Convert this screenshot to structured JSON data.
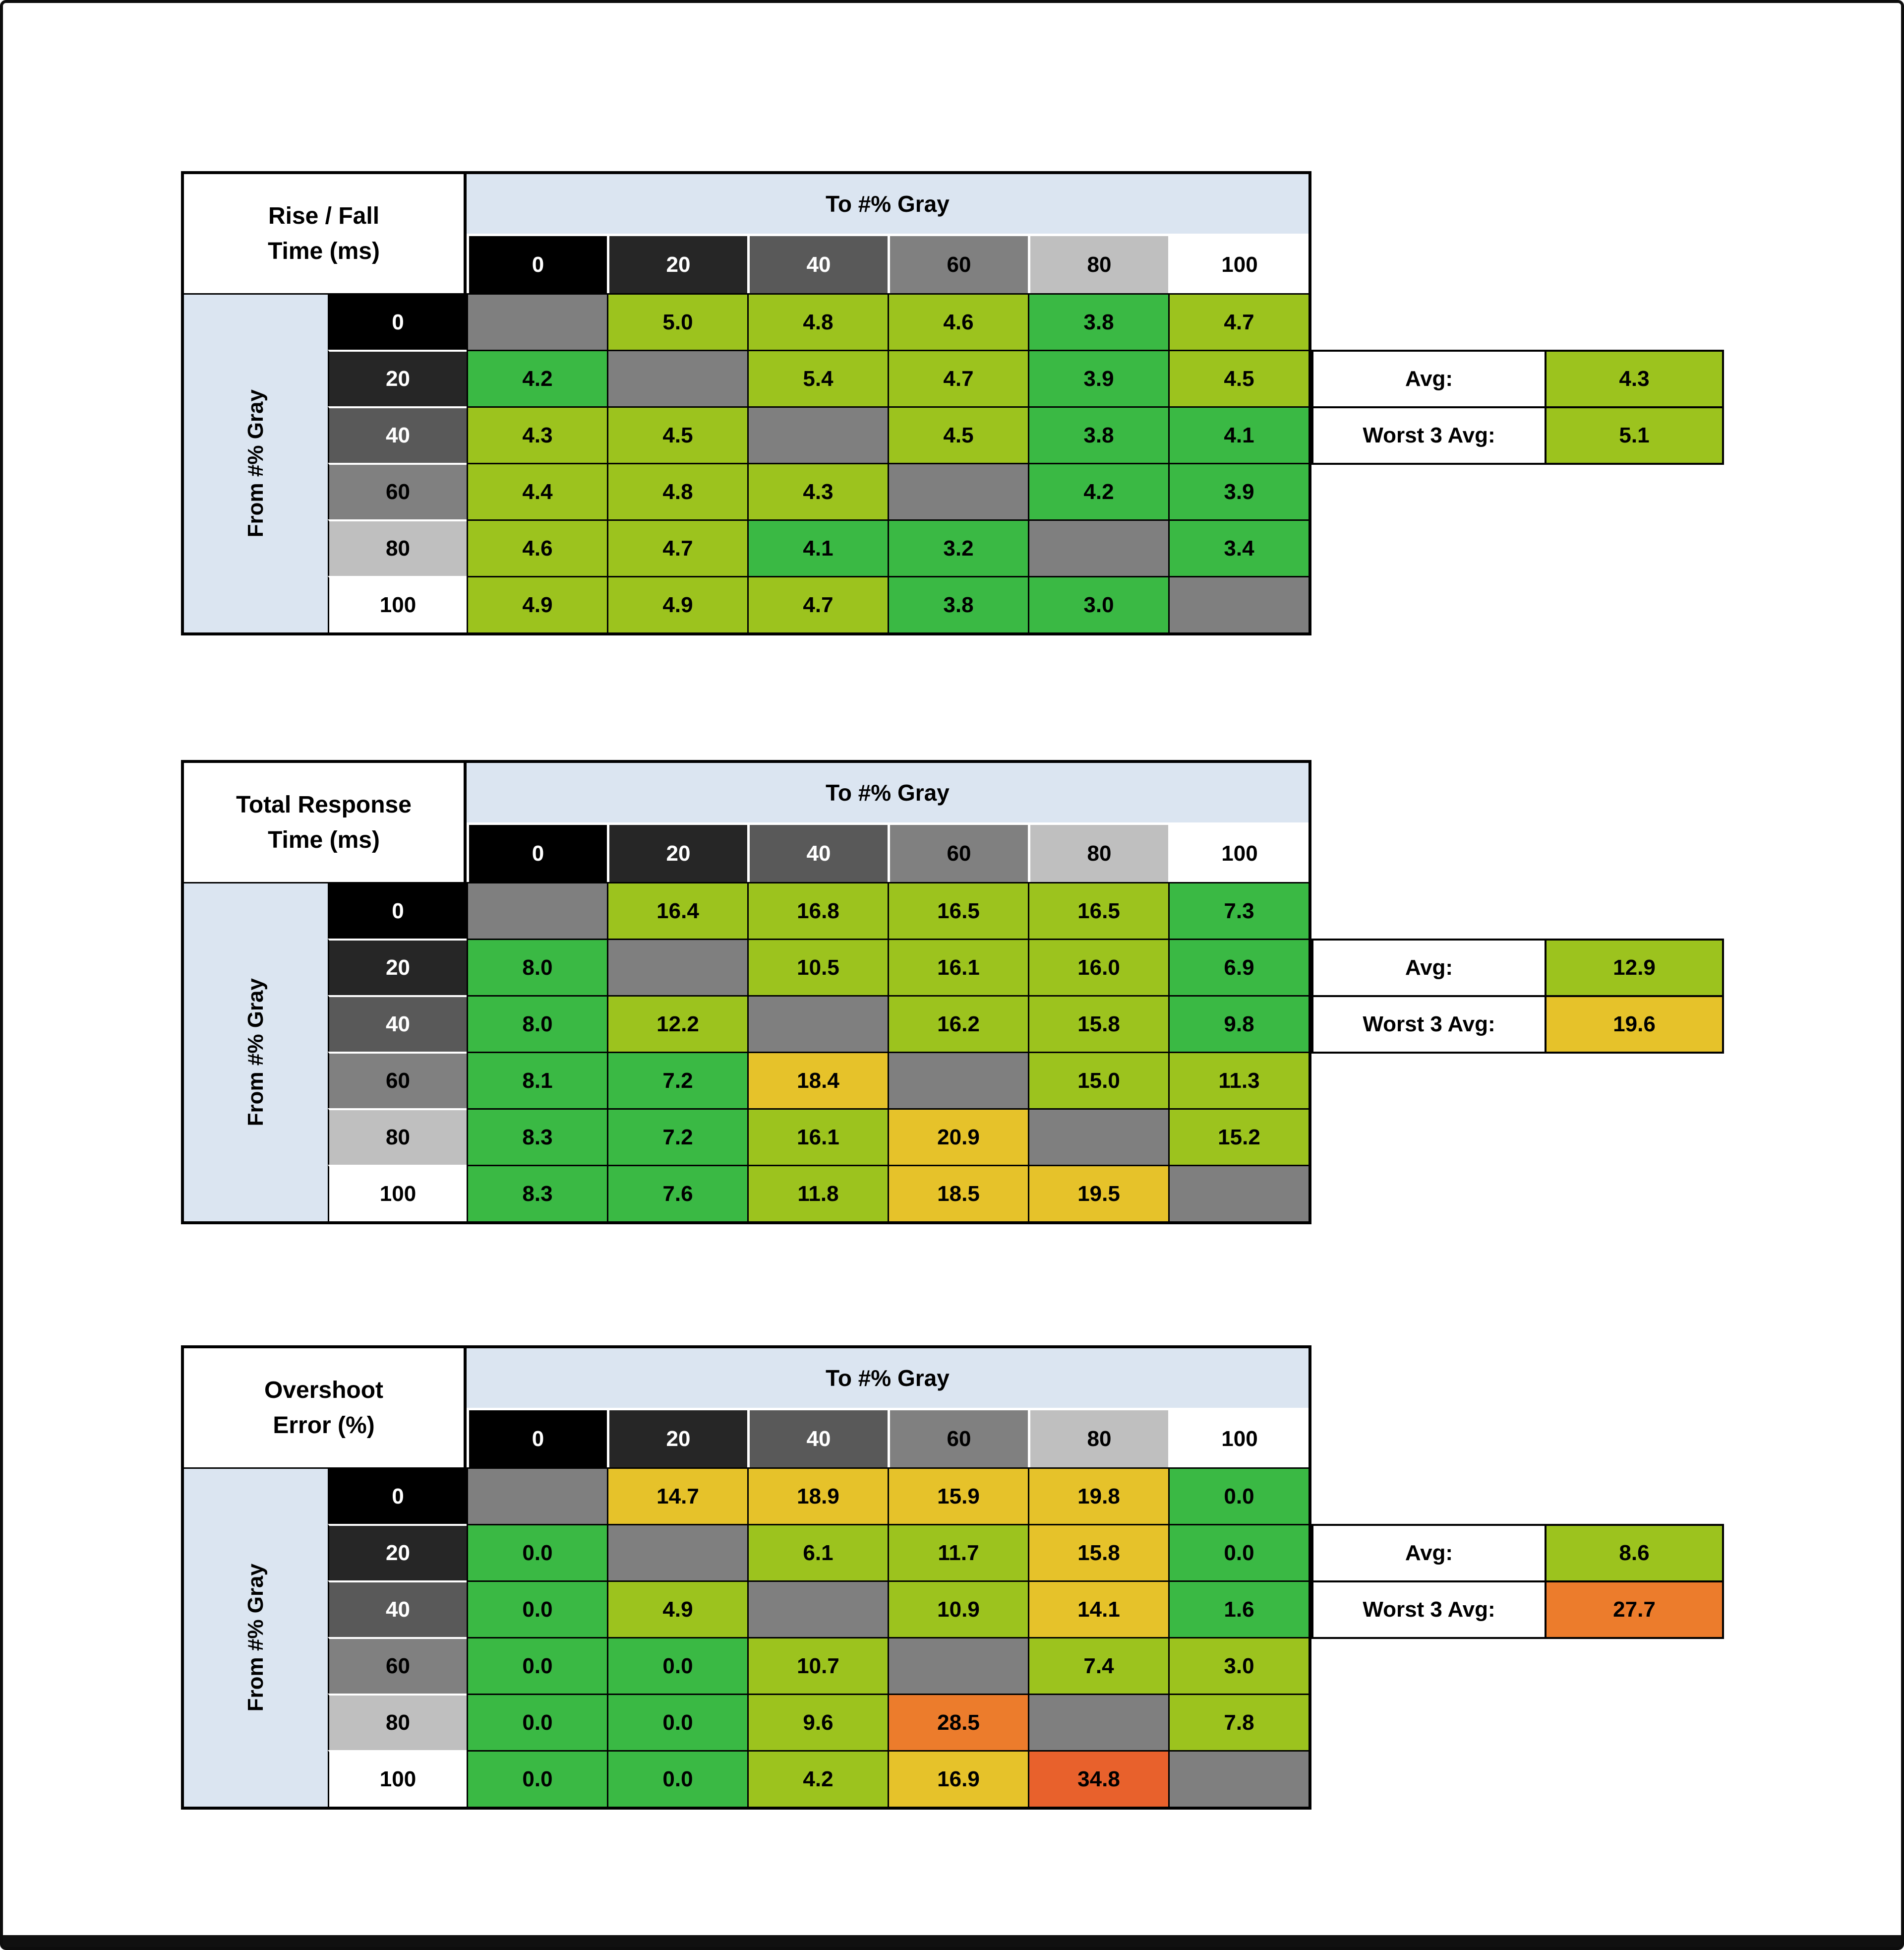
{
  "page": {
    "background": "#ffffff",
    "frame_color": "#0d0d0d"
  },
  "palette": {
    "band_blue": "#dbe5f1",
    "gray_scale_bg": [
      "#000000",
      "#262626",
      "#595959",
      "#808080",
      "#bfbfbf",
      "#ffffff"
    ],
    "gray_scale_text": [
      "#ffffff",
      "#ffffff",
      "#ffffff",
      "#000000",
      "#000000",
      "#000000"
    ],
    "classes": {
      "green": "#3ab944",
      "lime": "#9cc31e",
      "yellow": "#e6c22a",
      "orange": "#ec7c2c",
      "red_orange": "#e8612c",
      "diag": "#7f7f7f"
    }
  },
  "chart_data": [
    {
      "type": "heatmap",
      "title": "Rise / Fall Time (ms)",
      "title_lines": [
        "Rise / Fall",
        "Time (ms)"
      ],
      "x_label": "To #% Gray",
      "y_label": "From #% Gray",
      "x_ticks": [
        "0",
        "20",
        "40",
        "60",
        "80",
        "100"
      ],
      "y_ticks": [
        "0",
        "20",
        "40",
        "60",
        "80",
        "100"
      ],
      "values": [
        [
          null,
          5.0,
          4.8,
          4.6,
          3.8,
          4.7
        ],
        [
          4.2,
          null,
          5.4,
          4.7,
          3.9,
          4.5
        ],
        [
          4.3,
          4.5,
          null,
          4.5,
          3.8,
          4.1
        ],
        [
          4.4,
          4.8,
          4.3,
          null,
          4.2,
          3.9
        ],
        [
          4.6,
          4.7,
          4.1,
          3.2,
          null,
          3.4
        ],
        [
          4.9,
          4.9,
          4.7,
          3.8,
          3.0,
          null
        ]
      ],
      "cell_colors": [
        [
          "diag",
          "lime",
          "lime",
          "lime",
          "green",
          "lime"
        ],
        [
          "green",
          "diag",
          "lime",
          "lime",
          "green",
          "lime"
        ],
        [
          "lime",
          "lime",
          "diag",
          "lime",
          "green",
          "green"
        ],
        [
          "lime",
          "lime",
          "lime",
          "diag",
          "green",
          "green"
        ],
        [
          "lime",
          "lime",
          "green",
          "green",
          "diag",
          "green"
        ],
        [
          "lime",
          "lime",
          "lime",
          "green",
          "green",
          "diag"
        ]
      ],
      "avg": {
        "label": "Avg:",
        "value": 4.3,
        "color": "lime"
      },
      "worst_3_avg": {
        "label": "Worst 3 Avg:",
        "value": 5.1,
        "color": "lime"
      }
    },
    {
      "type": "heatmap",
      "title": "Total Response Time (ms)",
      "title_lines": [
        "Total Response",
        "Time (ms)"
      ],
      "x_label": "To #% Gray",
      "y_label": "From #% Gray",
      "x_ticks": [
        "0",
        "20",
        "40",
        "60",
        "80",
        "100"
      ],
      "y_ticks": [
        "0",
        "20",
        "40",
        "60",
        "80",
        "100"
      ],
      "values": [
        [
          null,
          16.4,
          16.8,
          16.5,
          16.5,
          7.3
        ],
        [
          8.0,
          null,
          10.5,
          16.1,
          16.0,
          6.9
        ],
        [
          8.0,
          12.2,
          null,
          16.2,
          15.8,
          9.8
        ],
        [
          8.1,
          7.2,
          18.4,
          null,
          15.0,
          11.3
        ],
        [
          8.3,
          7.2,
          16.1,
          20.9,
          null,
          15.2
        ],
        [
          8.3,
          7.6,
          11.8,
          18.5,
          19.5,
          null
        ]
      ],
      "cell_colors": [
        [
          "diag",
          "lime",
          "lime",
          "lime",
          "lime",
          "green"
        ],
        [
          "green",
          "diag",
          "lime",
          "lime",
          "lime",
          "green"
        ],
        [
          "green",
          "lime",
          "diag",
          "lime",
          "lime",
          "green"
        ],
        [
          "green",
          "green",
          "yellow",
          "diag",
          "lime",
          "lime"
        ],
        [
          "green",
          "green",
          "lime",
          "yellow",
          "diag",
          "lime"
        ],
        [
          "green",
          "green",
          "lime",
          "yellow",
          "yellow",
          "diag"
        ]
      ],
      "avg": {
        "label": "Avg:",
        "value": 12.9,
        "color": "lime"
      },
      "worst_3_avg": {
        "label": "Worst 3 Avg:",
        "value": 19.6,
        "color": "yellow"
      }
    },
    {
      "type": "heatmap",
      "title": "Overshoot Error (%)",
      "title_lines": [
        "Overshoot",
        "Error (%)"
      ],
      "x_label": "To #% Gray",
      "y_label": "From #% Gray",
      "x_ticks": [
        "0",
        "20",
        "40",
        "60",
        "80",
        "100"
      ],
      "y_ticks": [
        "0",
        "20",
        "40",
        "60",
        "80",
        "100"
      ],
      "values": [
        [
          null,
          14.7,
          18.9,
          15.9,
          19.8,
          0.0
        ],
        [
          0.0,
          null,
          6.1,
          11.7,
          15.8,
          0.0
        ],
        [
          0.0,
          4.9,
          null,
          10.9,
          14.1,
          1.6
        ],
        [
          0.0,
          0.0,
          10.7,
          null,
          7.4,
          3.0
        ],
        [
          0.0,
          0.0,
          9.6,
          28.5,
          null,
          7.8
        ],
        [
          0.0,
          0.0,
          4.2,
          16.9,
          34.8,
          null
        ]
      ],
      "cell_colors": [
        [
          "diag",
          "yellow",
          "yellow",
          "yellow",
          "yellow",
          "green"
        ],
        [
          "green",
          "diag",
          "lime",
          "lime",
          "yellow",
          "green"
        ],
        [
          "green",
          "lime",
          "diag",
          "lime",
          "yellow",
          "green"
        ],
        [
          "green",
          "green",
          "lime",
          "diag",
          "lime",
          "lime"
        ],
        [
          "green",
          "green",
          "lime",
          "orange",
          "diag",
          "lime"
        ],
        [
          "green",
          "green",
          "lime",
          "yellow",
          "red_orange",
          "diag"
        ]
      ],
      "avg": {
        "label": "Avg:",
        "value": 8.6,
        "color": "lime"
      },
      "worst_3_avg": {
        "label": "Worst 3 Avg:",
        "value": 27.7,
        "color": "orange"
      }
    }
  ]
}
